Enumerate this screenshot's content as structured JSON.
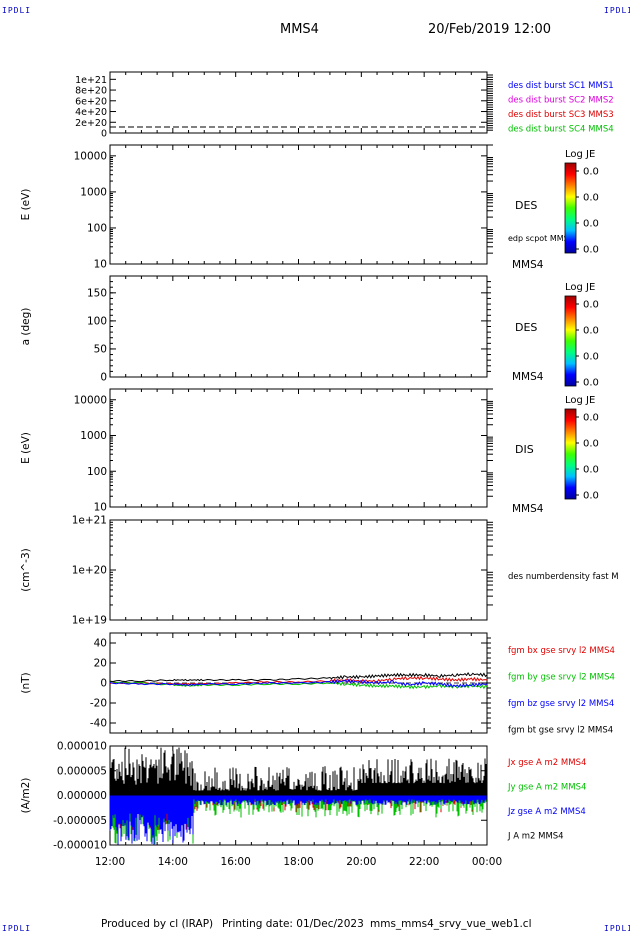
{
  "corner_labels": {
    "top_left": "IPDLI",
    "top_right": "IPDLI",
    "bottom_left": "IPDLI",
    "bottom_right": "IPDLI"
  },
  "header": {
    "spacecraft": "MMS4",
    "datetime": "20/Feb/2019 12:00"
  },
  "footer": {
    "produced_by": "Produced by cl (IRAP)",
    "printing_date": "Printing date: 01/Dec/2023",
    "filename": "mms_mms4_srvy_vue_web1.cl"
  },
  "colors": {
    "black": "#000000",
    "blue": "#0000ff",
    "magenta": "#e000e0",
    "red": "#e00000",
    "green": "#00c000"
  },
  "colorbar_gradient": [
    "#0000a0",
    "#0000ff",
    "#00c0ff",
    "#00ff80",
    "#40ff00",
    "#ffff00",
    "#ff8000",
    "#ff0000",
    "#a00000"
  ],
  "chart_data": [
    {
      "type": "line",
      "y_ticks": [
        "0",
        "2e+20",
        "4e+20",
        "6e+20",
        "8e+20",
        "1e+21"
      ],
      "ylim": [
        0,
        1e+21
      ],
      "series": [
        {
          "name": "des dist burst SC1 MMS1",
          "color": "#0000ff",
          "values": [
            0
          ]
        },
        {
          "name": "des dist burst SC2 MMS2",
          "color": "#e000e0",
          "values": [
            0
          ]
        },
        {
          "name": "des dist burst SC3 MMS3",
          "color": "#e00000",
          "values": [
            0
          ]
        },
        {
          "name": "des dist burst SC4 MMS4",
          "color": "#00c000",
          "values": [
            0
          ]
        }
      ]
    },
    {
      "type": "heatmap",
      "ylabel": "E (eV)",
      "y_ticks": [
        "10",
        "100",
        "1000",
        "10000"
      ],
      "ylim": [
        10,
        20000
      ],
      "yscale": "log",
      "label": "DES",
      "overlay_label": "edp scpot MMS4",
      "spacecraft": "MMS4",
      "colorbar": {
        "title": "Log JE",
        "ticks": [
          "0.0",
          "0.0",
          "0.0",
          "0.0"
        ]
      }
    },
    {
      "type": "heatmap",
      "ylabel": "a (deg)",
      "y_ticks": [
        "0",
        "50",
        "100",
        "150"
      ],
      "ylim": [
        0,
        180
      ],
      "label": "DES",
      "spacecraft": "MMS4",
      "colorbar": {
        "title": "Log JE",
        "ticks": [
          "0.0",
          "0.0",
          "0.0",
          "0.0"
        ]
      }
    },
    {
      "type": "heatmap",
      "ylabel": "E (eV)",
      "y_ticks": [
        "10",
        "100",
        "1000",
        "10000"
      ],
      "ylim": [
        10,
        20000
      ],
      "yscale": "log",
      "label": "DIS",
      "spacecraft": "MMS4",
      "colorbar": {
        "title": "Log JE",
        "ticks": [
          "0.0",
          "0.0",
          "0.0",
          "0.0"
        ]
      }
    },
    {
      "type": "line",
      "ylabel": "(cm^-3)",
      "y_ticks": [
        "1e+19",
        "1e+20",
        "1e+21"
      ],
      "ylim": [
        1e+19,
        1e+21
      ],
      "yscale": "log",
      "series": [
        {
          "name": "des numberdensity fast M",
          "color": "#000000",
          "values": []
        }
      ]
    },
    {
      "type": "line",
      "ylabel": "(nT)",
      "y_ticks": [
        "-40",
        "-20",
        "0",
        "20",
        "40"
      ],
      "ylim": [
        -50,
        50
      ],
      "x": [
        12,
        13,
        14,
        14.5,
        15,
        16,
        17,
        18,
        19,
        19.5,
        20,
        20.5,
        21,
        21.5,
        22,
        22.5,
        23,
        23.5,
        24
      ],
      "series": [
        {
          "name": "fgm bx gse srvy l2 MMS4",
          "color": "#e00000",
          "values": [
            0,
            0,
            -1,
            -1,
            -1,
            0,
            1,
            1,
            2,
            3,
            2,
            2,
            4,
            5,
            5,
            4,
            3,
            4,
            3
          ]
        },
        {
          "name": "fgm by gse srvy l2 MMS4",
          "color": "#00c000",
          "values": [
            1,
            0,
            -2,
            -3,
            -2,
            -2,
            -1,
            -1,
            0,
            -1,
            -2,
            -3,
            -3,
            -4,
            -4,
            -3,
            -4,
            -3,
            -4
          ]
        },
        {
          "name": "fgm bz gse srvy l2 MMS4",
          "color": "#0000ff",
          "values": [
            0,
            -1,
            -1,
            -2,
            -1,
            -1,
            0,
            0,
            1,
            2,
            1,
            0,
            1,
            -2,
            0,
            -1,
            -3,
            -2,
            -1
          ]
        },
        {
          "name": "fgm bt gse srvy l2 MMS4",
          "color": "#000000",
          "values": [
            2,
            2,
            3,
            3,
            3,
            3,
            3,
            4,
            5,
            6,
            6,
            7,
            8,
            8,
            8,
            7,
            8,
            9,
            8
          ]
        }
      ]
    },
    {
      "type": "area",
      "ylabel": "(A/m2)",
      "y_ticks": [
        "-0.000010",
        "-0.000005",
        "0.000000",
        "0.000005",
        "0.000010"
      ],
      "ylim": [
        -1e-05,
        1e-05
      ],
      "x_ticks": [
        "12:00",
        "14:00",
        "16:00",
        "18:00",
        "20:00",
        "22:00",
        "00:00"
      ],
      "x_hours": [
        12,
        24
      ],
      "series": [
        {
          "name": "Jx gse A m2 MMS4",
          "color": "#e00000",
          "values": []
        },
        {
          "name": "Jy gse A m2 MMS4",
          "color": "#00c000",
          "values": []
        },
        {
          "name": "Jz gse A m2 MMS4",
          "color": "#0000ff",
          "values": []
        },
        {
          "name": "J A m2 MMS4",
          "color": "#000000",
          "values": []
        }
      ]
    }
  ]
}
